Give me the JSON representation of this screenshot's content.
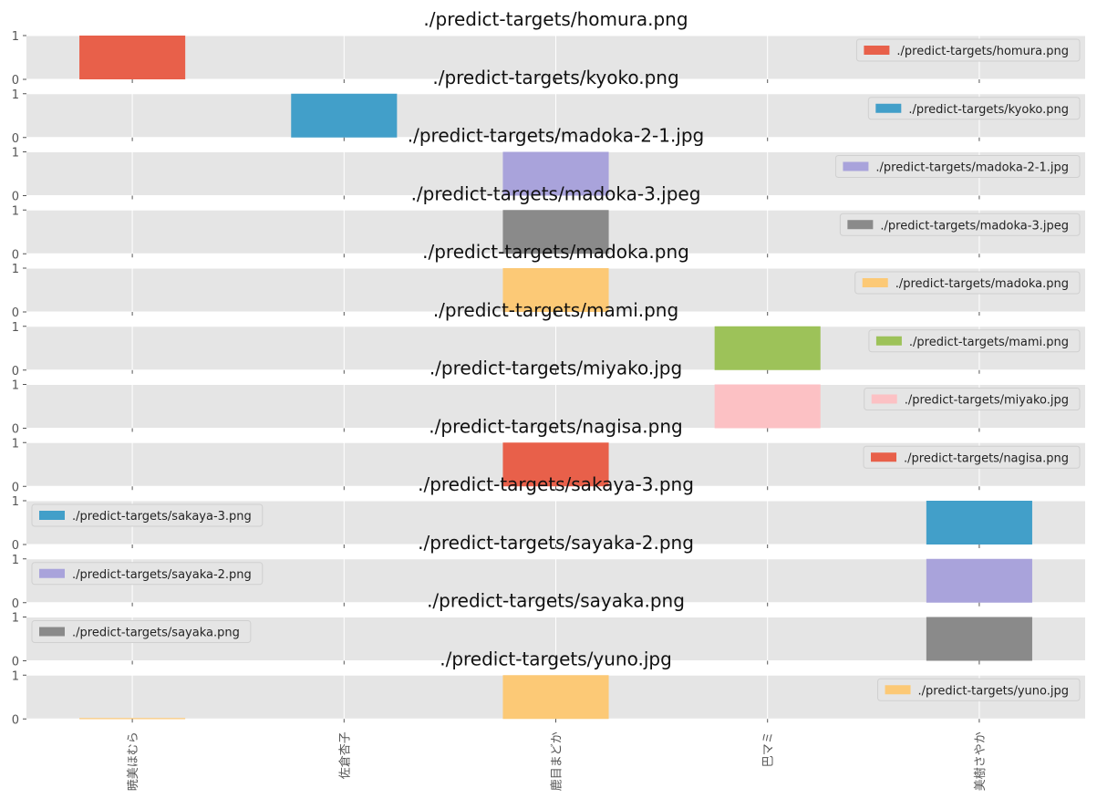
{
  "chart_data": {
    "type": "bar",
    "subplots": [
      {
        "title": "./predict-targets/homura.png",
        "legend": "./predict-targets/homura.png",
        "legend_loc": "upper right",
        "color": "#E8604A",
        "values": [
          1,
          0,
          0,
          0,
          0
        ]
      },
      {
        "title": "./predict-targets/kyoko.png",
        "legend": "./predict-targets/kyoko.png",
        "legend_loc": "upper right",
        "color": "#429FC9",
        "values": [
          0,
          1,
          0,
          0,
          0
        ]
      },
      {
        "title": "./predict-targets/madoka-2-1.jpg",
        "legend": "./predict-targets/madoka-2-1.jpg",
        "legend_loc": "upper right",
        "color": "#A9A3DB",
        "values": [
          0,
          0,
          1,
          0,
          0
        ]
      },
      {
        "title": "./predict-targets/madoka-3.jpeg",
        "legend": "./predict-targets/madoka-3.jpeg",
        "legend_loc": "upper right",
        "color": "#8A8A8A",
        "values": [
          0,
          0,
          1,
          0,
          0
        ]
      },
      {
        "title": "./predict-targets/madoka.png",
        "legend": "./predict-targets/madoka.png",
        "legend_loc": "upper right",
        "color": "#FCC976",
        "values": [
          0,
          0,
          1,
          0,
          0
        ]
      },
      {
        "title": "./predict-targets/mami.png",
        "legend": "./predict-targets/mami.png",
        "legend_loc": "upper right",
        "color": "#9DC259",
        "values": [
          0,
          0,
          0,
          1,
          0
        ]
      },
      {
        "title": "./predict-targets/miyako.jpg",
        "legend": "./predict-targets/miyako.jpg",
        "legend_loc": "upper right",
        "color": "#FCC1C4",
        "values": [
          0,
          0,
          0,
          1,
          0
        ]
      },
      {
        "title": "./predict-targets/nagisa.png",
        "legend": "./predict-targets/nagisa.png",
        "legend_loc": "upper right",
        "color": "#E8604A",
        "values": [
          0,
          0,
          1,
          0,
          0
        ]
      },
      {
        "title": "./predict-targets/sakaya-3.png",
        "legend": "./predict-targets/sakaya-3.png",
        "legend_loc": "upper left",
        "color": "#429FC9",
        "values": [
          0,
          0,
          0,
          0,
          1
        ]
      },
      {
        "title": "./predict-targets/sayaka-2.png",
        "legend": "./predict-targets/sayaka-2.png",
        "legend_loc": "upper left",
        "color": "#A9A3DB",
        "values": [
          0,
          0,
          0,
          0,
          1
        ]
      },
      {
        "title": "./predict-targets/sayaka.png",
        "legend": "./predict-targets/sayaka.png",
        "legend_loc": "upper left",
        "color": "#8A8A8A",
        "values": [
          0,
          0,
          0,
          0,
          1
        ]
      },
      {
        "title": "./predict-targets/yuno.jpg",
        "legend": "./predict-targets/yuno.jpg",
        "legend_loc": "upper right",
        "color": "#FCC976",
        "values": [
          0.02,
          0,
          1,
          0,
          0
        ]
      }
    ],
    "categories": [
      "暁美ほむら",
      "佐倉杏子",
      "鹿目まどか",
      "巴マミ",
      "美樹さやか"
    ],
    "ylim": [
      0,
      1
    ],
    "yticks": [
      "0",
      "1"
    ],
    "grid": true,
    "style": "ggplot"
  }
}
